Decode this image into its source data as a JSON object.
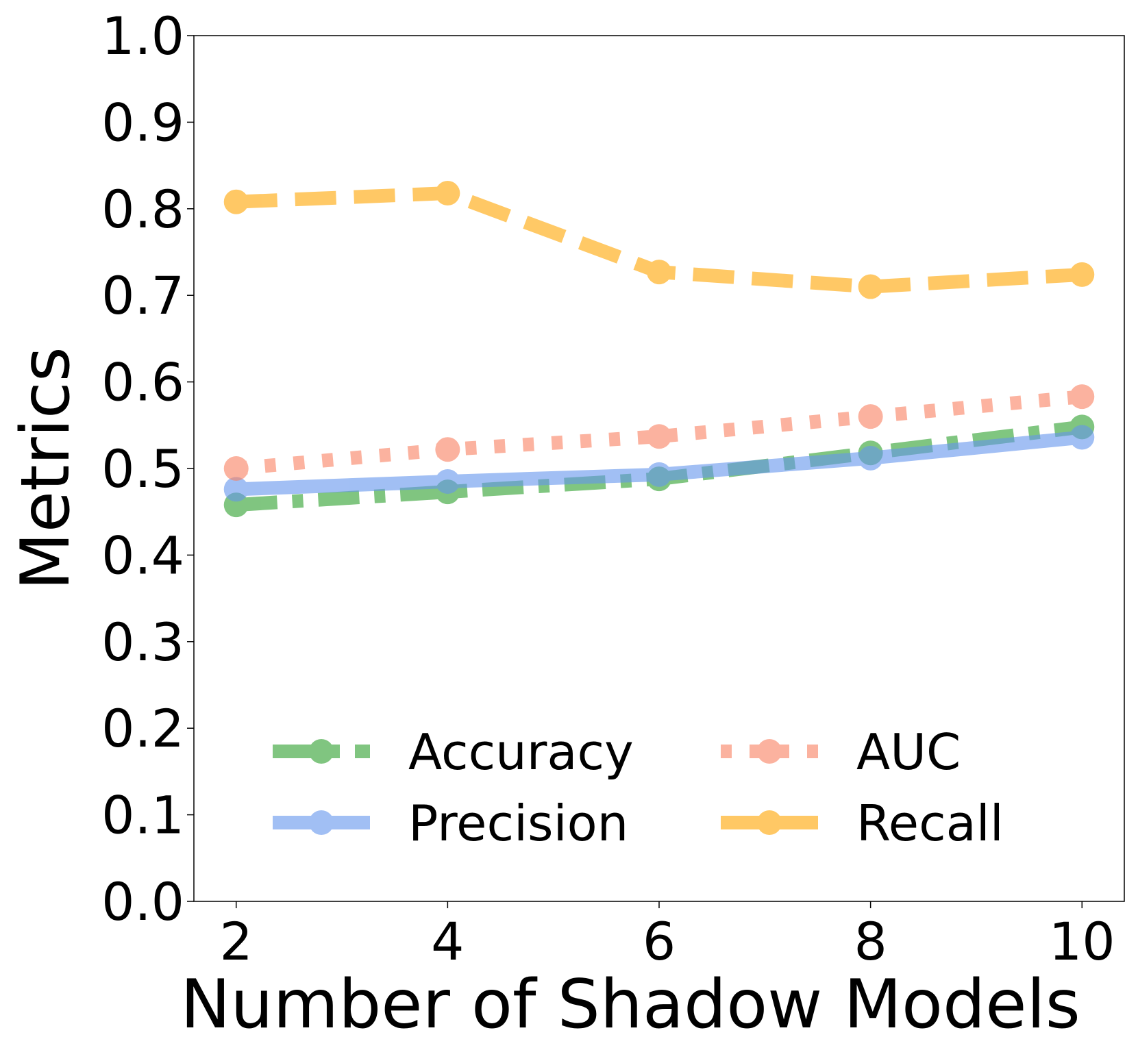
{
  "chart_data": {
    "type": "line",
    "x_label": "Number of Shadow Models",
    "y_label": "Metrics",
    "x": [
      2,
      4,
      6,
      8,
      10
    ],
    "xlim": [
      1.6,
      10.4
    ],
    "xticks": [
      2,
      4,
      6,
      8,
      10
    ],
    "ylim": [
      0,
      1
    ],
    "yticks": [
      {
        "value": 0,
        "label": "0.0"
      },
      0.1,
      0.2,
      0.3,
      0.4,
      0.5,
      0.6,
      0.7,
      0.8,
      0.9,
      {
        "value": 1,
        "label": "1.0"
      }
    ],
    "legend": "lower center",
    "series": [
      {
        "name": "Accuracy",
        "color": "#2ca02c",
        "linestyle": "dashdot",
        "values": [
          0.458,
          0.473,
          0.488,
          0.518,
          0.548
        ]
      },
      {
        "name": "Precision",
        "color": "#6495ed",
        "linestyle": "solid",
        "values": [
          0.476,
          0.485,
          0.493,
          0.512,
          0.536
        ]
      },
      {
        "name": "AUC",
        "color": "#fa8060",
        "linestyle": "dotted",
        "values": [
          0.5,
          0.522,
          0.537,
          0.56,
          0.583
        ]
      },
      {
        "name": "Recall",
        "color": "#ffa500",
        "linestyle": "dashed",
        "values": [
          0.808,
          0.818,
          0.727,
          0.71,
          0.724
        ]
      }
    ]
  }
}
